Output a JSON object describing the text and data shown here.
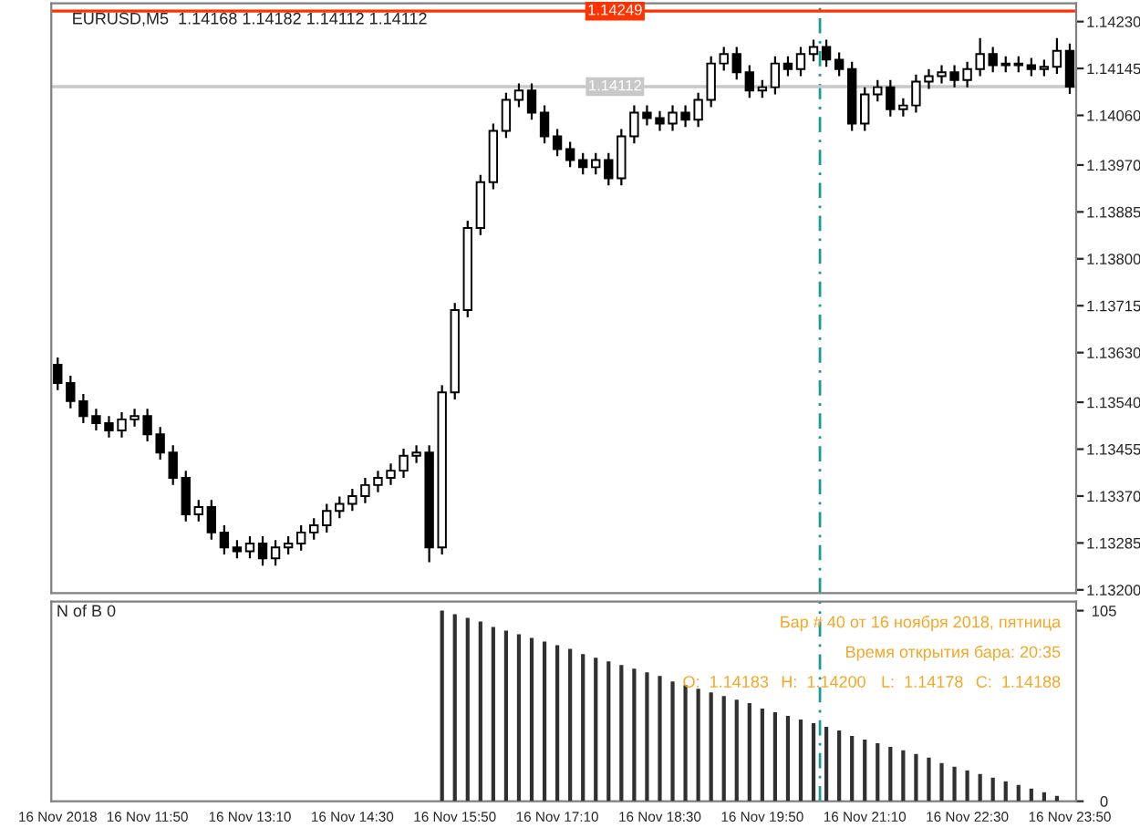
{
  "chart_data": [
    {
      "type": "candlestick",
      "title": "EURUSD,M5  1.14168 1.14182 1.14112 1.14112",
      "color": "#000000",
      "categories": [
        null,
        null,
        null,
        null,
        null,
        null,
        null,
        null,
        null,
        null,
        null,
        null,
        null,
        null,
        null,
        null,
        null,
        null,
        null,
        null,
        null,
        null,
        null,
        null,
        null,
        null,
        null,
        null,
        null,
        null,
        null,
        null,
        null,
        null,
        null,
        null,
        null,
        null,
        null,
        null,
        null,
        null,
        null,
        null,
        null,
        null,
        null,
        null,
        null,
        null,
        null,
        null,
        null,
        null,
        null,
        null,
        null,
        null,
        null,
        null,
        null,
        null,
        null,
        null,
        null,
        null,
        null,
        null,
        null,
        null,
        null,
        null,
        null,
        null,
        null,
        null,
        null,
        null,
        null,
        null
      ],
      "ohlc": [
        [
          1.13608,
          1.13621,
          1.13562,
          1.13575
        ],
        [
          1.13575,
          1.13588,
          1.13529,
          1.13542
        ],
        [
          1.13542,
          1.13555,
          1.13502,
          1.13515
        ],
        [
          1.13515,
          1.13528,
          1.13489,
          1.13502
        ],
        [
          1.13502,
          1.13515,
          1.13476,
          1.13489
        ],
        [
          1.13489,
          1.13522,
          1.13476,
          1.13509
        ],
        [
          1.13509,
          1.13528,
          1.13496,
          1.13515
        ],
        [
          1.13515,
          1.13528,
          1.13469,
          1.13482
        ],
        [
          1.13482,
          1.13495,
          1.13436,
          1.13449
        ],
        [
          1.13449,
          1.13462,
          1.1339,
          1.13403
        ],
        [
          1.13403,
          1.13416,
          1.13324,
          1.13337
        ],
        [
          1.13337,
          1.13363,
          1.13324,
          1.1335
        ],
        [
          1.1335,
          1.13363,
          1.13291,
          1.13304
        ],
        [
          1.13304,
          1.13317,
          1.13264,
          1.13277
        ],
        [
          1.13277,
          1.1329,
          1.13257,
          1.1327
        ],
        [
          1.1327,
          1.13297,
          1.13257,
          1.13284
        ],
        [
          1.13284,
          1.13297,
          1.13244,
          1.13257
        ],
        [
          1.13257,
          1.1329,
          1.13244,
          1.13277
        ],
        [
          1.13277,
          1.13297,
          1.13264,
          1.13284
        ],
        [
          1.13284,
          1.13317,
          1.13271,
          1.13304
        ],
        [
          1.13304,
          1.1333,
          1.13291,
          1.13317
        ],
        [
          1.13317,
          1.13356,
          1.13304,
          1.13343
        ],
        [
          1.13343,
          1.13369,
          1.1333,
          1.13356
        ],
        [
          1.13356,
          1.13383,
          1.13343,
          1.1337
        ],
        [
          1.1337,
          1.13403,
          1.13357,
          1.1339
        ],
        [
          1.1339,
          1.13416,
          1.13377,
          1.13403
        ],
        [
          1.13403,
          1.13429,
          1.1339,
          1.13416
        ],
        [
          1.13416,
          1.13456,
          1.13403,
          1.13443
        ],
        [
          1.13443,
          1.13462,
          1.1343,
          1.13449
        ],
        [
          1.13449,
          1.13462,
          1.1325,
          1.13277
        ],
        [
          1.13277,
          1.13571,
          1.13264,
          1.13558
        ],
        [
          1.13558,
          1.1372,
          1.13545,
          1.13707
        ],
        [
          1.13707,
          1.13869,
          1.13694,
          1.13856
        ],
        [
          1.13856,
          1.13952,
          1.13843,
          1.13939
        ],
        [
          1.13939,
          1.14045,
          1.13926,
          1.14032
        ],
        [
          1.14032,
          1.14101,
          1.14019,
          1.14088
        ],
        [
          1.14088,
          1.14118,
          1.14075,
          1.14105
        ],
        [
          1.14105,
          1.14118,
          1.14052,
          1.14065
        ],
        [
          1.14065,
          1.14078,
          1.14009,
          1.14022
        ],
        [
          1.14022,
          1.14035,
          1.13986,
          1.13999
        ],
        [
          1.13999,
          1.14012,
          1.13966,
          1.13979
        ],
        [
          1.13979,
          1.13992,
          1.13953,
          1.13966
        ],
        [
          1.13966,
          1.13992,
          1.13953,
          1.13979
        ],
        [
          1.13979,
          1.13992,
          1.13933,
          1.13946
        ],
        [
          1.13946,
          1.14035,
          1.13933,
          1.14022
        ],
        [
          1.14022,
          1.14078,
          1.14009,
          1.14065
        ],
        [
          1.14065,
          1.14078,
          1.14042,
          1.14055
        ],
        [
          1.14055,
          1.14068,
          1.14032,
          1.14045
        ],
        [
          1.14045,
          1.14078,
          1.14032,
          1.14065
        ],
        [
          1.14065,
          1.14078,
          1.14039,
          1.14052
        ],
        [
          1.14052,
          1.14101,
          1.14039,
          1.14088
        ],
        [
          1.14088,
          1.14167,
          1.14075,
          1.14154
        ],
        [
          1.14154,
          1.14184,
          1.14141,
          1.14171
        ],
        [
          1.14171,
          1.14184,
          1.14125,
          1.14138
        ],
        [
          1.14138,
          1.14151,
          1.14092,
          1.14105
        ],
        [
          1.14105,
          1.14124,
          1.14092,
          1.14111
        ],
        [
          1.14111,
          1.14167,
          1.14098,
          1.14154
        ],
        [
          1.14154,
          1.14167,
          1.14131,
          1.14144
        ],
        [
          1.14144,
          1.14184,
          1.14131,
          1.14171
        ],
        [
          1.14171,
          1.14197,
          1.14158,
          1.14184
        ],
        [
          1.14184,
          1.14197,
          1.14148,
          1.14161
        ],
        [
          1.14161,
          1.14174,
          1.14131,
          1.14144
        ],
        [
          1.14144,
          1.14157,
          1.14032,
          1.14045
        ],
        [
          1.14045,
          1.14111,
          1.14032,
          1.14098
        ],
        [
          1.14098,
          1.14124,
          1.14085,
          1.14111
        ],
        [
          1.14111,
          1.14124,
          1.14058,
          1.14071
        ],
        [
          1.14071,
          1.14091,
          1.14058,
          1.14078
        ],
        [
          1.14078,
          1.14134,
          1.14065,
          1.14121
        ],
        [
          1.14121,
          1.14144,
          1.14108,
          1.14131
        ],
        [
          1.14131,
          1.14151,
          1.14118,
          1.14138
        ],
        [
          1.14138,
          1.14151,
          1.14111,
          1.14124
        ],
        [
          1.14124,
          1.14157,
          1.14111,
          1.14144
        ],
        [
          1.14144,
          1.142,
          1.14131,
          1.14171
        ],
        [
          1.14171,
          1.14184,
          1.14138,
          1.14151
        ],
        [
          1.14151,
          1.14167,
          1.14138,
          1.14154
        ],
        [
          1.14154,
          1.14167,
          1.14138,
          1.14151
        ],
        [
          1.14151,
          1.14164,
          1.14131,
          1.14144
        ],
        [
          1.14144,
          1.14161,
          1.14131,
          1.14148
        ],
        [
          1.14148,
          1.142,
          1.14135,
          1.14177
        ],
        [
          1.14177,
          1.1419,
          1.14099,
          1.14112
        ]
      ],
      "ylim": [
        1.13194,
        1.14263
      ],
      "yticks": [
        {
          "value": 1.1423,
          "label": "1.14230"
        },
        {
          "value": 1.14145,
          "label": "1.14145"
        },
        {
          "value": 1.1406,
          "label": "1.14060"
        },
        {
          "value": 1.1397,
          "label": "1.13970"
        },
        {
          "value": 1.13885,
          "label": "1.13885"
        },
        {
          "value": 1.138,
          "label": "1.13800"
        },
        {
          "value": 1.13715,
          "label": "1.13715"
        },
        {
          "value": 1.1363,
          "label": "1.13630"
        },
        {
          "value": 1.1354,
          "label": "1.13540"
        },
        {
          "value": 1.13455,
          "label": "1.13455"
        },
        {
          "value": 1.1337,
          "label": "1.13370"
        },
        {
          "value": 1.13285,
          "label": "1.13285"
        },
        {
          "value": 1.132,
          "label": "1.13200"
        }
      ],
      "tick_labels": "y",
      "ref_lines": [
        {
          "axis": "y",
          "value": 1.14249,
          "label": "1.14249",
          "color": "#ff3300"
        },
        {
          "axis": "y",
          "value": 1.14112,
          "label": "1.14112",
          "color": "#c8c8c8"
        }
      ]
    },
    {
      "type": "bar",
      "title": "N of B 0",
      "color": "#303030",
      "categories": [
        "16 Nov 2018",
        null,
        null,
        null,
        null,
        null,
        null,
        "16 Nov 11:50",
        null,
        null,
        null,
        null,
        null,
        null,
        null,
        "16 Nov 13:10",
        null,
        null,
        null,
        null,
        null,
        null,
        null,
        "16 Nov 14:30",
        null,
        null,
        null,
        null,
        null,
        null,
        null,
        "16 Nov 15:50",
        null,
        null,
        null,
        null,
        null,
        null,
        null,
        "16 Nov 17:10",
        null,
        null,
        null,
        null,
        null,
        null,
        null,
        "16 Nov 18:30",
        null,
        null,
        null,
        null,
        null,
        null,
        null,
        "16 Nov 19:50",
        null,
        null,
        null,
        null,
        null,
        null,
        null,
        "16 Nov 21:10",
        null,
        null,
        null,
        null,
        null,
        null,
        null,
        "16 Nov 22:30",
        null,
        null,
        null,
        null,
        null,
        null,
        null,
        "16 Nov 23:50"
      ],
      "values": [
        null,
        null,
        null,
        null,
        null,
        null,
        null,
        null,
        null,
        null,
        null,
        null,
        null,
        null,
        null,
        null,
        null,
        null,
        null,
        null,
        null,
        null,
        null,
        null,
        null,
        null,
        null,
        null,
        null,
        null,
        105,
        103,
        101,
        99,
        96,
        94,
        92,
        90,
        88,
        86,
        84,
        81,
        79,
        77,
        75,
        73,
        71,
        69,
        66,
        64,
        62,
        60,
        58,
        56,
        54,
        51,
        49,
        47,
        45,
        43,
        41,
        39,
        36,
        34,
        32,
        30,
        28,
        26,
        24,
        21,
        19,
        17,
        15,
        13,
        11,
        9,
        7,
        5,
        3,
        null
      ],
      "ylim": [
        0,
        110
      ],
      "yticks": [
        0,
        105
      ],
      "annotations": [
        "Бар # 40 от 16 ноября 2018, пятница",
        "Время открытия бара: 20:35",
        "O:  1.14183",
        "H:  1.14200",
        "L:  1.14178",
        "C:  1.14188"
      ]
    }
  ]
}
